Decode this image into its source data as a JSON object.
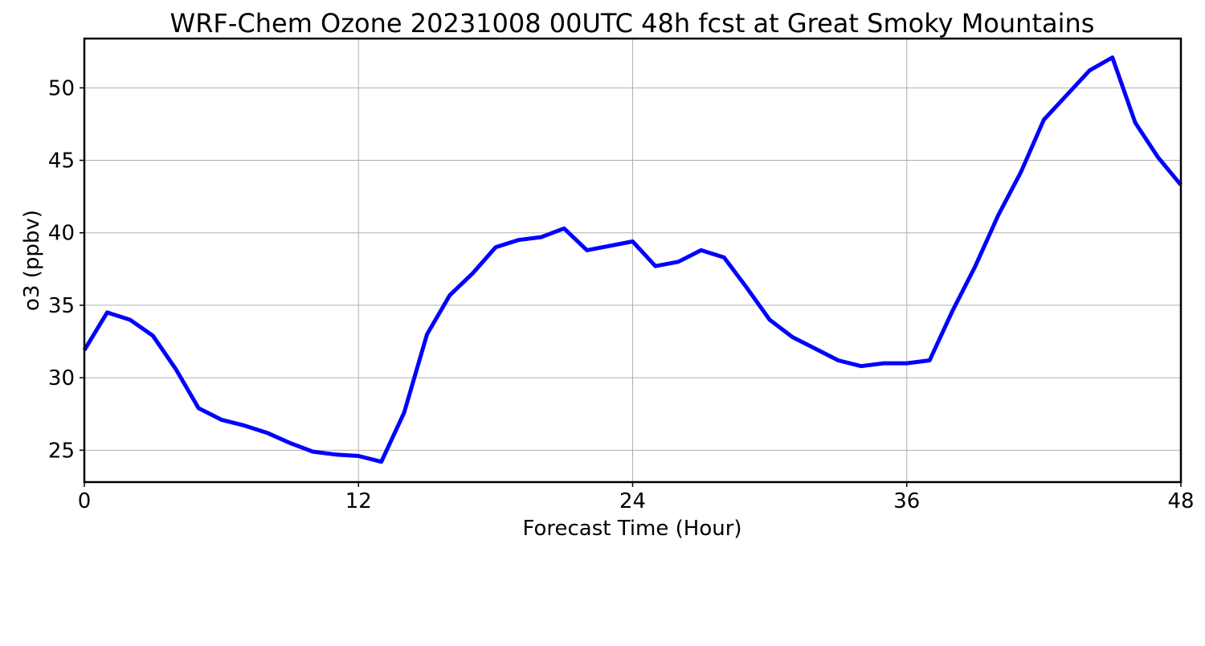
{
  "chart_data": {
    "type": "line",
    "title": "WRF-Chem Ozone  20231008 00UTC 48h fcst at Great Smoky Mountains",
    "xlabel": "Forecast Time (Hour)",
    "ylabel": "o3  (ppbv)",
    "xlim": [
      0,
      48
    ],
    "ylim": [
      22.8,
      53.4
    ],
    "xticks": [
      0,
      12,
      24,
      36,
      48
    ],
    "yticks": [
      25,
      30,
      35,
      40,
      45,
      50
    ],
    "grid": true,
    "series": [
      {
        "color": "#0000ff",
        "x": [
          0,
          1,
          2,
          3,
          4,
          5,
          6,
          7,
          8,
          9,
          10,
          11,
          12,
          13,
          14,
          15,
          16,
          17,
          18,
          19,
          20,
          21,
          22,
          23,
          24,
          25,
          26,
          27,
          28,
          29,
          30,
          31,
          32,
          33,
          34,
          35,
          36,
          37,
          38,
          39,
          40,
          41,
          42,
          43,
          44,
          45,
          46,
          47,
          48
        ],
        "y": [
          31.9,
          34.5,
          34.0,
          32.9,
          30.6,
          27.9,
          27.1,
          26.7,
          26.2,
          25.5,
          24.9,
          24.7,
          24.6,
          24.2,
          27.6,
          33.0,
          35.7,
          37.2,
          39.0,
          39.5,
          39.7,
          40.3,
          38.8,
          39.1,
          39.4,
          37.7,
          38.0,
          38.8,
          38.3,
          36.2,
          34.0,
          32.8,
          32.0,
          31.2,
          30.8,
          31.0,
          31.0,
          31.2,
          34.6,
          37.7,
          41.2,
          44.2,
          47.8,
          49.5,
          51.2,
          52.1,
          47.6,
          45.2,
          43.3
        ]
      }
    ]
  }
}
